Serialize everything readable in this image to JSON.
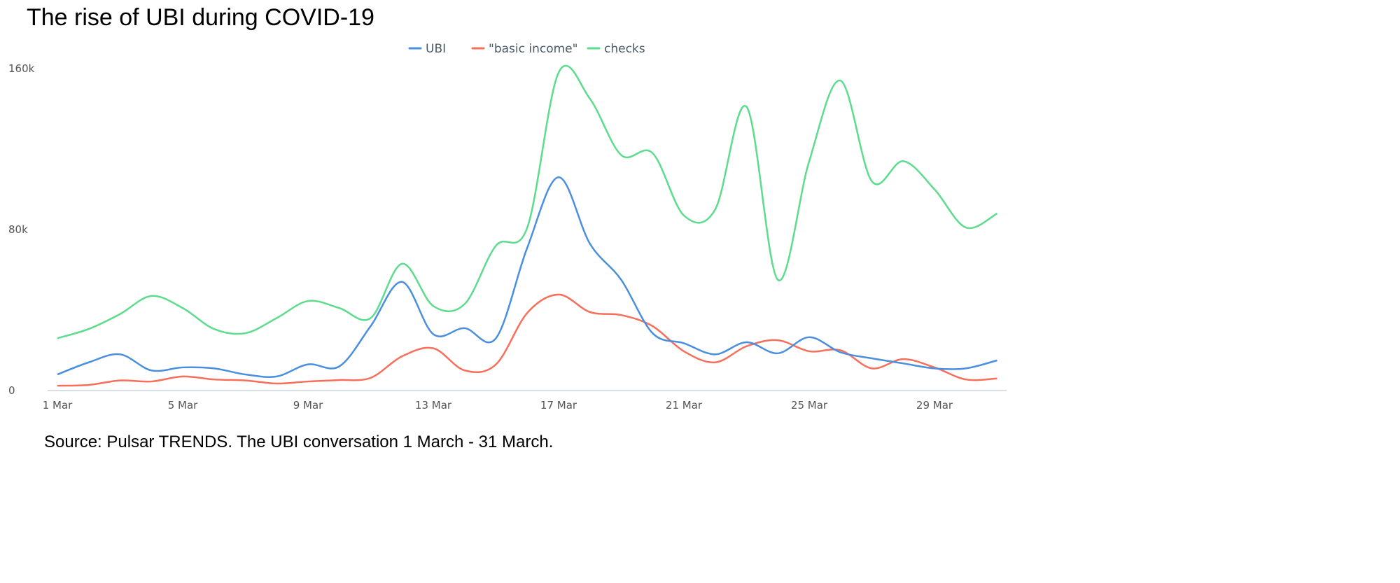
{
  "chart_data": {
    "type": "line",
    "title": "The rise of UBI during COVID-19",
    "source": "Source: Pulsar TRENDS. The UBI conversation 1 March - 31 March.",
    "xlabel": "",
    "ylabel": "",
    "x": [
      1,
      2,
      3,
      4,
      5,
      6,
      7,
      8,
      9,
      10,
      11,
      12,
      13,
      14,
      15,
      16,
      17,
      18,
      19,
      20,
      21,
      22,
      23,
      24,
      25,
      26,
      27,
      28,
      29,
      30,
      31
    ],
    "xticks": [
      {
        "day": 1,
        "label": "1 Mar"
      },
      {
        "day": 5,
        "label": "5 Mar"
      },
      {
        "day": 9,
        "label": "9 Mar"
      },
      {
        "day": 13,
        "label": "13 Mar"
      },
      {
        "day": 17,
        "label": "17 Mar"
      },
      {
        "day": 21,
        "label": "21 Mar"
      },
      {
        "day": 25,
        "label": "25 Mar"
      },
      {
        "day": 29,
        "label": "29 Mar"
      }
    ],
    "yticks": [
      {
        "value": 0,
        "label": "0"
      },
      {
        "value": 80000,
        "label": "80k"
      },
      {
        "value": 160000,
        "label": "160k"
      }
    ],
    "ylim": [
      0,
      160000
    ],
    "grid": false,
    "legend_position": "top-center",
    "series": [
      {
        "name": "UBI",
        "color": "#4a8fdf",
        "values": [
          8000,
          14000,
          18000,
          10000,
          11500,
          11000,
          8000,
          7000,
          13000,
          12000,
          32000,
          54000,
          28000,
          31000,
          26000,
          71000,
          106000,
          73000,
          55000,
          28500,
          23500,
          18000,
          24000,
          18500,
          26500,
          19000,
          16000,
          13500,
          11000,
          11000,
          15000
        ]
      },
      {
        "name": "\"basic income\"",
        "color": "#f76e5a",
        "values": [
          2400,
          2800,
          5000,
          4500,
          7000,
          5500,
          5000,
          3500,
          4500,
          5200,
          6300,
          17000,
          21000,
          10000,
          13000,
          38600,
          47700,
          39000,
          37500,
          32000,
          19500,
          14000,
          22000,
          25000,
          19500,
          20000,
          11000,
          15600,
          11500,
          5500,
          6000
        ]
      },
      {
        "name": "checks",
        "color": "#5cdc8c",
        "values": [
          26000,
          30600,
          38000,
          47000,
          41000,
          30600,
          28500,
          36000,
          44500,
          41000,
          36000,
          63000,
          42000,
          43000,
          72000,
          81000,
          158000,
          145000,
          117000,
          118000,
          87000,
          90000,
          141000,
          55000,
          114000,
          154000,
          104000,
          114000,
          100000,
          81000,
          88000
        ]
      }
    ]
  }
}
